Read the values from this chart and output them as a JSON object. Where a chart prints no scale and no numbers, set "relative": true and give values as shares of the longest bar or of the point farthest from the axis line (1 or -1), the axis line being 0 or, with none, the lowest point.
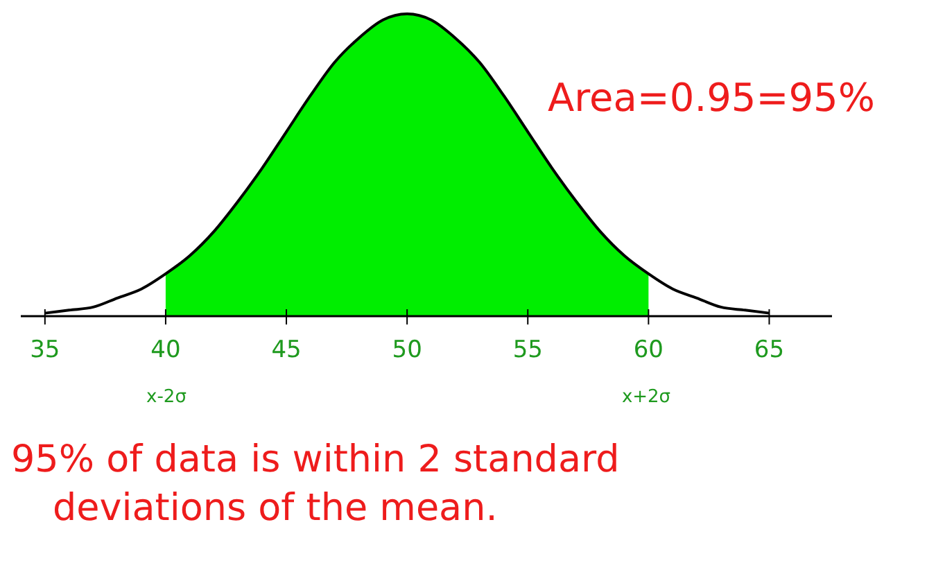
{
  "chart_data": {
    "type": "line",
    "relative": true,
    "xlim": [
      34,
      67.6
    ],
    "xticks": [
      35,
      40,
      45,
      50,
      55,
      60,
      65
    ],
    "grid": false,
    "series": [
      {
        "type": "area",
        "color": "#00ee00",
        "x": [
          40,
          41,
          42,
          43,
          44,
          45,
          46,
          47,
          48,
          49,
          50,
          51,
          52,
          53,
          54,
          55,
          56,
          57,
          58,
          59,
          60
        ],
        "values": [
          0.14,
          0.2,
          0.28,
          0.38,
          0.49,
          0.61,
          0.73,
          0.84,
          0.92,
          0.98,
          1,
          0.98,
          0.92,
          0.84,
          0.73,
          0.61,
          0.49,
          0.38,
          0.28,
          0.2,
          0.14
        ]
      },
      {
        "type": "line",
        "color": "#000000",
        "x": [
          35,
          36,
          37,
          38,
          39,
          40,
          41,
          42,
          43,
          44,
          45,
          46,
          47,
          48,
          49,
          50,
          51,
          52,
          53,
          54,
          55,
          56,
          57,
          58,
          59,
          60,
          61,
          62,
          63,
          64,
          65
        ],
        "values": [
          0.01,
          0.02,
          0.03,
          0.06,
          0.09,
          0.14,
          0.2,
          0.28,
          0.38,
          0.49,
          0.61,
          0.73,
          0.84,
          0.92,
          0.98,
          1,
          0.98,
          0.92,
          0.84,
          0.73,
          0.61,
          0.49,
          0.38,
          0.28,
          0.2,
          0.14,
          0.09,
          0.06,
          0.03,
          0.02,
          0.01
        ]
      }
    ],
    "annotations": [
      "Area=0.95=95%",
      "x-2σ",
      "x+2σ",
      "95% of data is within 2 standard deviations of the mean."
    ]
  }
}
